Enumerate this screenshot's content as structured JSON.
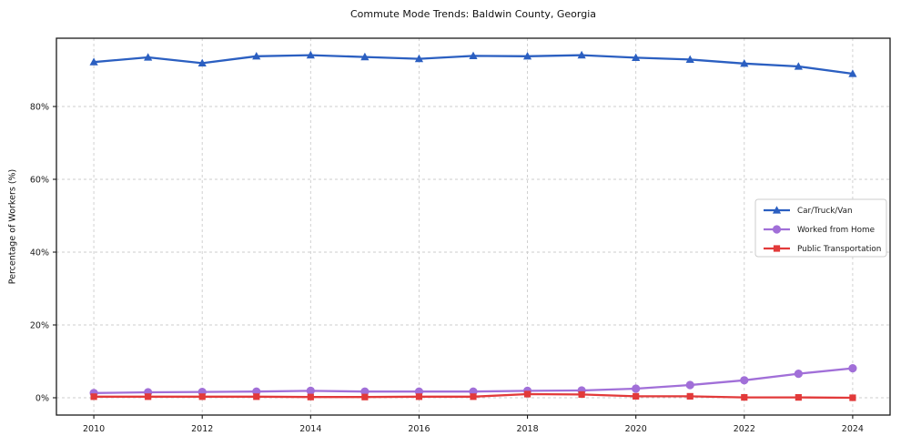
{
  "chart_data": {
    "type": "line",
    "title": "Commute Mode Trends: Baldwin County, Georgia",
    "xlabel": "",
    "ylabel": "Percentage of Workers (%)",
    "x": [
      2010,
      2011,
      2012,
      2013,
      2014,
      2015,
      2016,
      2017,
      2018,
      2019,
      2020,
      2021,
      2022,
      2023,
      2024
    ],
    "series": [
      {
        "name": "Car/Truck/Van",
        "color": "#2b5fc1",
        "marker": "triangle",
        "values": [
          92.2,
          93.5,
          91.9,
          93.8,
          94.1,
          93.6,
          93.1,
          93.9,
          93.8,
          94.1,
          93.4,
          92.9,
          91.8,
          91.0,
          89.0
        ]
      },
      {
        "name": "Worked from Home",
        "color": "#a16fd8",
        "marker": "circle",
        "values": [
          1.3,
          1.5,
          1.6,
          1.7,
          1.9,
          1.7,
          1.7,
          1.7,
          1.9,
          2.0,
          2.5,
          3.5,
          4.8,
          6.6,
          8.1
        ]
      },
      {
        "name": "Public Transportation",
        "color": "#e23a3a",
        "marker": "square",
        "values": [
          0.3,
          0.3,
          0.3,
          0.3,
          0.2,
          0.2,
          0.3,
          0.3,
          1.0,
          0.9,
          0.4,
          0.4,
          0.1,
          0.1,
          0.0
        ]
      }
    ],
    "xticks": {
      "values": [
        2010,
        2012,
        2014,
        2016,
        2018,
        2020,
        2022,
        2024
      ],
      "labels": [
        "2010",
        "2012",
        "2014",
        "2016",
        "2018",
        "2020",
        "2022",
        "2024"
      ]
    },
    "yticks": {
      "values": [
        0,
        20,
        40,
        60,
        80
      ],
      "labels": [
        "0%",
        "20%",
        "40%",
        "60%",
        "80%"
      ]
    },
    "xlim": [
      2009.31,
      2024.69
    ],
    "ylim": [
      -4.75,
      98.75
    ],
    "grid": true,
    "grid_color": "#cccccc",
    "spine_color": "#1a1a1a",
    "legend_position": "center right",
    "legend": [
      "Car/Truck/Van",
      "Worked from Home",
      "Public Transportation"
    ]
  }
}
